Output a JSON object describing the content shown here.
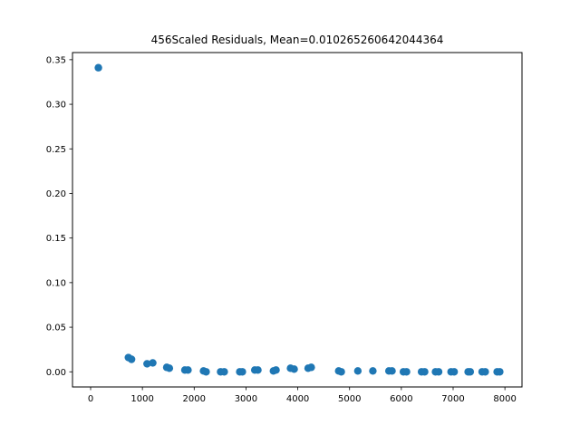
{
  "chart_data": {
    "type": "scatter",
    "title": "456Scaled Residuals, Mean=0.010265260642044364",
    "xlabel": "",
    "ylabel": "",
    "xlim": [
      -350,
      8330
    ],
    "ylim": [
      -0.017,
      0.358
    ],
    "x_ticks": [
      0,
      1000,
      2000,
      3000,
      4000,
      5000,
      6000,
      7000,
      8000
    ],
    "y_ticks": [
      0.0,
      0.05,
      0.1,
      0.15,
      0.2,
      0.25,
      0.3,
      0.35
    ],
    "x_tick_labels": [
      "0",
      "1000",
      "2000",
      "3000",
      "4000",
      "5000",
      "6000",
      "7000",
      "8000"
    ],
    "y_tick_labels": [
      "0.00",
      "0.05",
      "0.10",
      "0.15",
      "0.20",
      "0.25",
      "0.30",
      "0.35"
    ],
    "grid": false,
    "marker_color": "#1f77b4",
    "series": [
      {
        "x": [
          150,
          730,
          790,
          1090,
          1200,
          1470,
          1520,
          1820,
          1880,
          2180,
          2230,
          2510,
          2580,
          2880,
          2930,
          3170,
          3230,
          3530,
          3580,
          3860,
          3930,
          4200,
          4260,
          4790,
          4840,
          5160,
          5450,
          5760,
          5820,
          6040,
          6100,
          6390,
          6450,
          6660,
          6720,
          6960,
          7020,
          7290,
          7330,
          7560,
          7620,
          7850,
          7900
        ],
        "y": [
          0.341,
          0.016,
          0.014,
          0.009,
          0.01,
          0.005,
          0.004,
          0.002,
          0.002,
          0.001,
          0.0,
          0.0,
          0.0,
          0.0,
          0.0,
          0.002,
          0.002,
          0.001,
          0.002,
          0.004,
          0.003,
          0.004,
          0.005,
          0.001,
          0.0,
          0.001,
          0.001,
          0.001,
          0.001,
          0.0,
          0.0,
          0.0,
          0.0,
          0.0,
          0.0,
          0.0,
          0.0,
          0.0,
          0.0,
          0.0,
          0.0,
          0.0,
          0.0
        ]
      }
    ]
  }
}
